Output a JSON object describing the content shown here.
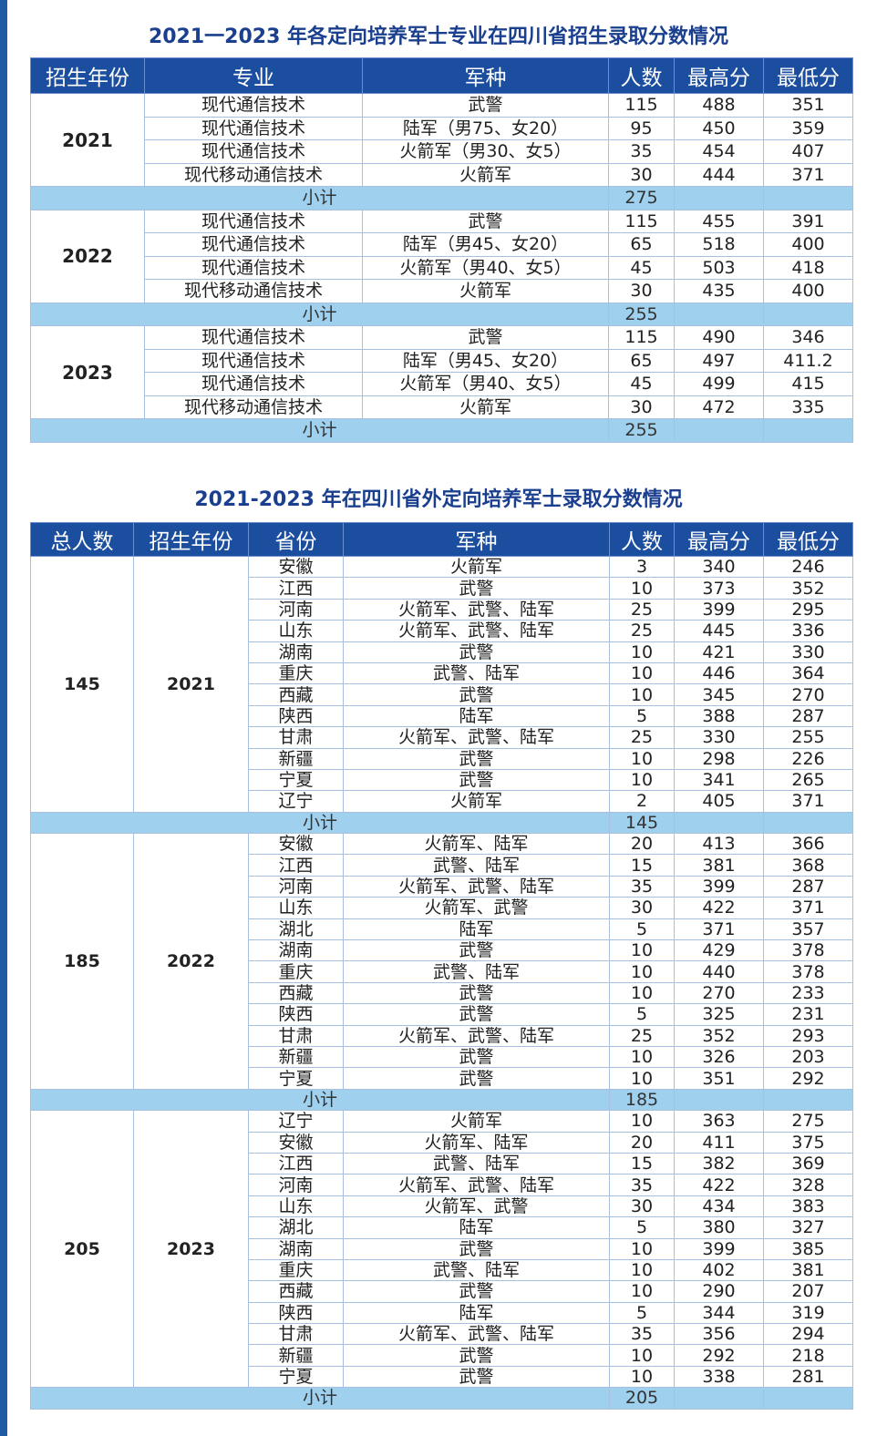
{
  "table1": {
    "title": "2021一2023 年各定向培养军士专业在四川省招生录取分数情况",
    "headers": [
      "招生年份",
      "专业",
      "军种",
      "人数",
      "最高分",
      "最低分"
    ],
    "subtotal_label": "小计",
    "groups": [
      {
        "year": "2021",
        "subtotal": "275",
        "rows": [
          [
            "现代通信技术",
            "武警",
            "115",
            "488",
            "351"
          ],
          [
            "现代通信技术",
            "陆军（男75、女20）",
            "95",
            "450",
            "359"
          ],
          [
            "现代通信技术",
            "火箭军（男30、女5）",
            "35",
            "454",
            "407"
          ],
          [
            "现代移动通信技术",
            "火箭军",
            "30",
            "444",
            "371"
          ]
        ]
      },
      {
        "year": "2022",
        "subtotal": "255",
        "rows": [
          [
            "现代通信技术",
            "武警",
            "115",
            "455",
            "391"
          ],
          [
            "现代通信技术",
            "陆军（男45、女20）",
            "65",
            "518",
            "400"
          ],
          [
            "现代通信技术",
            "火箭军（男40、女5）",
            "45",
            "503",
            "418"
          ],
          [
            "现代移动通信技术",
            "火箭军",
            "30",
            "435",
            "400"
          ]
        ]
      },
      {
        "year": "2023",
        "subtotal": "255",
        "rows": [
          [
            "现代通信技术",
            "武警",
            "115",
            "490",
            "346"
          ],
          [
            "现代通信技术",
            "陆军（男45、女20）",
            "65",
            "497",
            "411.2"
          ],
          [
            "现代通信技术",
            "火箭军（男40、女5）",
            "45",
            "499",
            "415"
          ],
          [
            "现代移动通信技术",
            "火箭军",
            "30",
            "472",
            "335"
          ]
        ]
      }
    ]
  },
  "table2": {
    "title": "2021-2023 年在四川省外定向培养军士录取分数情况",
    "headers": [
      "总人数",
      "招生年份",
      "省份",
      "军种",
      "人数",
      "最高分",
      "最低分"
    ],
    "subtotal_label": "小计",
    "groups": [
      {
        "total": "145",
        "year": "2021",
        "subtotal": "145",
        "rows": [
          [
            "安徽",
            "火箭军",
            "3",
            "340",
            "246"
          ],
          [
            "江西",
            "武警",
            "10",
            "373",
            "352"
          ],
          [
            "河南",
            "火箭军、武警、陆军",
            "25",
            "399",
            "295"
          ],
          [
            "山东",
            "火箭军、武警、陆军",
            "25",
            "445",
            "336"
          ],
          [
            "湖南",
            "武警",
            "10",
            "421",
            "330"
          ],
          [
            "重庆",
            "武警、陆军",
            "10",
            "446",
            "364"
          ],
          [
            "西藏",
            "武警",
            "10",
            "345",
            "270"
          ],
          [
            "陕西",
            "陆军",
            "5",
            "388",
            "287"
          ],
          [
            "甘肃",
            "火箭军、武警、陆军",
            "25",
            "330",
            "255"
          ],
          [
            "新疆",
            "武警",
            "10",
            "298",
            "226"
          ],
          [
            "宁夏",
            "武警",
            "10",
            "341",
            "265"
          ],
          [
            "辽宁",
            "火箭军",
            "2",
            "405",
            "371"
          ]
        ]
      },
      {
        "total": "185",
        "year": "2022",
        "subtotal": "185",
        "rows": [
          [
            "安徽",
            "火箭军、陆军",
            "20",
            "413",
            "366"
          ],
          [
            "江西",
            "武警、陆军",
            "15",
            "381",
            "368"
          ],
          [
            "河南",
            "火箭军、武警、陆军",
            "35",
            "399",
            "287"
          ],
          [
            "山东",
            "火箭军、武警",
            "30",
            "422",
            "371"
          ],
          [
            "湖北",
            "陆军",
            "5",
            "371",
            "357"
          ],
          [
            "湖南",
            "武警",
            "10",
            "429",
            "378"
          ],
          [
            "重庆",
            "武警、陆军",
            "10",
            "440",
            "378"
          ],
          [
            "西藏",
            "武警",
            "10",
            "270",
            "233"
          ],
          [
            "陕西",
            "武警",
            "5",
            "325",
            "231"
          ],
          [
            "甘肃",
            "火箭军、武警、陆军",
            "25",
            "352",
            "293"
          ],
          [
            "新疆",
            "武警",
            "10",
            "326",
            "203"
          ],
          [
            "宁夏",
            "武警",
            "10",
            "351",
            "292"
          ]
        ]
      },
      {
        "total": "205",
        "year": "2023",
        "subtotal": "205",
        "rows": [
          [
            "辽宁",
            "火箭军",
            "10",
            "363",
            "275"
          ],
          [
            "安徽",
            "火箭军、陆军",
            "20",
            "411",
            "375"
          ],
          [
            "江西",
            "武警、陆军",
            "15",
            "382",
            "369"
          ],
          [
            "河南",
            "火箭军、武警、陆军",
            "35",
            "422",
            "328"
          ],
          [
            "山东",
            "火箭军、武警",
            "30",
            "434",
            "383"
          ],
          [
            "湖北",
            "陆军",
            "5",
            "380",
            "327"
          ],
          [
            "湖南",
            "武警",
            "10",
            "399",
            "385"
          ],
          [
            "重庆",
            "武警、陆军",
            "10",
            "402",
            "381"
          ],
          [
            "西藏",
            "武警",
            "10",
            "290",
            "207"
          ],
          [
            "陕西",
            "陆军",
            "5",
            "344",
            "319"
          ],
          [
            "甘肃",
            "火箭军、武警、陆军",
            "35",
            "356",
            "294"
          ],
          [
            "新疆",
            "武警",
            "10",
            "292",
            "218"
          ],
          [
            "宁夏",
            "武警",
            "10",
            "338",
            "281"
          ]
        ]
      }
    ]
  },
  "colors": {
    "header": "#1c4ea0",
    "subtotal": "#9fd0ee",
    "title": "#1a3f8f",
    "stripe": "#1f5aa6"
  }
}
